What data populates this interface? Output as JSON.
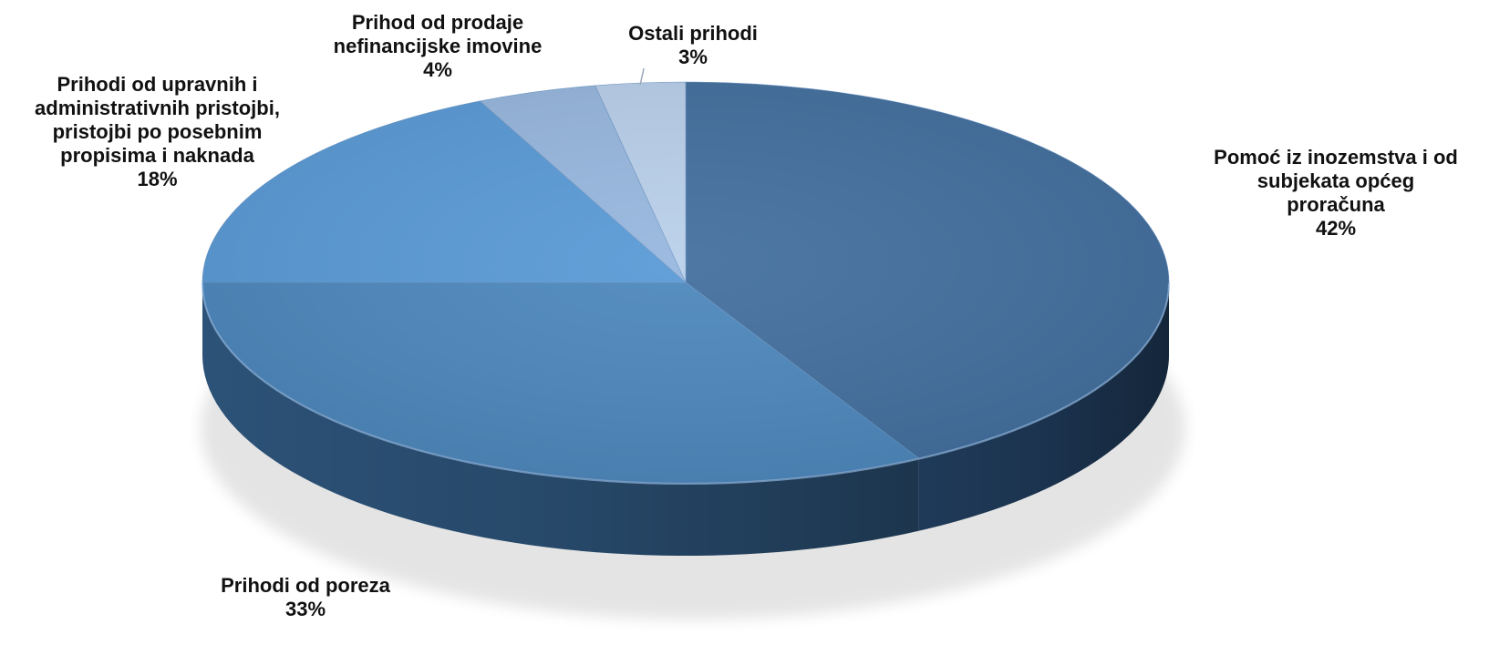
{
  "chart_data": {
    "type": "pie",
    "title": "",
    "categories": [
      "Pomoć iz inozemstva i od subjekata općeg proračuna",
      "Prihodi od poreza",
      "Prihodi od upravnih i administrativnih pristojbi, pristojbi po posebnim propisima i naknada",
      "Prihod od prodaje nefinancijske imovine",
      "Ostali prihodi"
    ],
    "values": [
      42,
      33,
      18,
      4,
      3
    ],
    "unit": "%",
    "legend": "none",
    "data_labels": [
      {
        "lines": [
          "Pomoć iz inozemstva i od",
          "subjekata općeg",
          "proračuna"
        ],
        "pct": "42%"
      },
      {
        "lines": [
          "Prihodi od poreza"
        ],
        "pct": "33%"
      },
      {
        "lines": [
          "Prihodi od upravnih i",
          "administrativnih pristojbi,",
          "pristojbi po posebnim",
          "propisima i naknada"
        ],
        "pct": "18%"
      },
      {
        "lines": [
          "Prihod od prodaje",
          "nefinancijske imovine"
        ],
        "pct": "4%"
      },
      {
        "lines": [
          "Ostali prihodi"
        ],
        "pct": "3%"
      }
    ],
    "colors": [
      "#436f9e",
      "#4d88bd",
      "#5a9ad6",
      "#97b7de",
      "#b9cfea"
    ],
    "side_colors": [
      "#1f3a59",
      "#2c5277",
      "#3a6a9a",
      "#6f8fb7",
      "#8ea9cc"
    ]
  }
}
